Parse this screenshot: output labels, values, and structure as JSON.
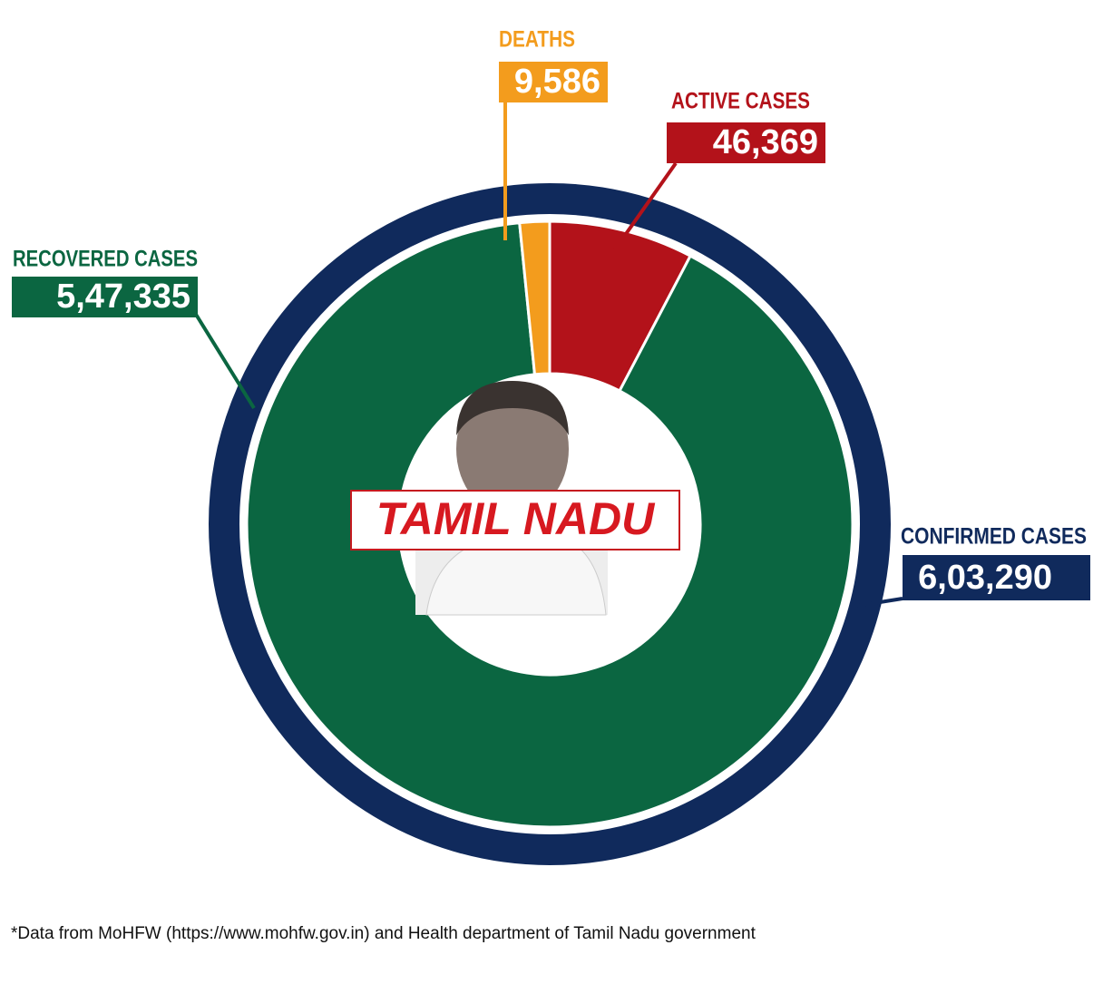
{
  "chart_data": {
    "type": "donut",
    "title": "TAMIL NADU",
    "total": {
      "name": "CONFIRMED CASES",
      "value": 603290,
      "value_label": "6,03,290",
      "color": "#102a5c"
    },
    "categories": [
      "ACTIVE CASES",
      "RECOVERED CASES",
      "DEATHS"
    ],
    "values": [
      46369,
      547335,
      9586
    ],
    "value_labels": [
      "46,369",
      "5,47,335",
      "9,586"
    ],
    "colors": [
      "#b3121a",
      "#0b6641",
      "#f39c1d"
    ]
  },
  "footnote": "*Data from MoHFW (https://www.mohfw.gov.in) and Health department of Tamil Nadu government"
}
